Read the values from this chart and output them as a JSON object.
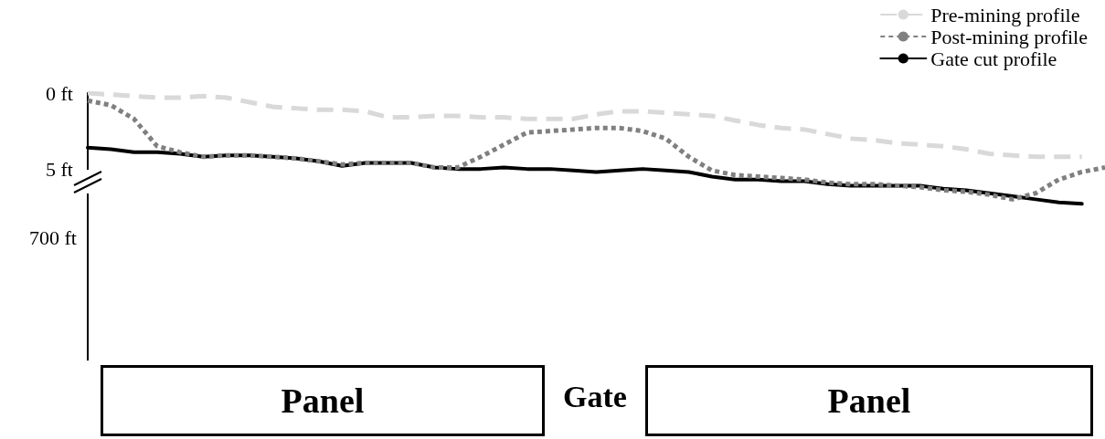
{
  "chart_data": {
    "type": "line",
    "categories": [
      null,
      null,
      null,
      null,
      null,
      null,
      null,
      null,
      null,
      null,
      null,
      null,
      null,
      null,
      null,
      null,
      null,
      null,
      null,
      null,
      null,
      null,
      null,
      null,
      null,
      null,
      null,
      null,
      null,
      null,
      null,
      null,
      null,
      null,
      null,
      null,
      null,
      null,
      null,
      null,
      null,
      null,
      null,
      null,
      null
    ],
    "series": [
      {
        "name": "Pre-mining profile",
        "color": "#d9d9d9",
        "line_style": "dashed",
        "values": [
          0.0,
          0.1,
          0.2,
          0.3,
          0.3,
          0.2,
          0.3,
          0.6,
          0.9,
          1.0,
          1.1,
          1.1,
          1.2,
          1.6,
          1.6,
          1.5,
          1.5,
          1.6,
          1.6,
          1.7,
          1.7,
          1.7,
          1.4,
          1.2,
          1.2,
          1.3,
          1.4,
          1.5,
          1.8,
          2.1,
          2.3,
          2.4,
          2.7,
          3.0,
          3.1,
          3.3,
          3.4,
          3.5,
          3.7,
          4.0,
          4.1,
          4.2,
          4.2,
          4.2,
          null
        ]
      },
      {
        "name": "Post-mining profile",
        "color": "#808080",
        "line_style": "dotted",
        "values": [
          0.5,
          0.8,
          1.7,
          3.5,
          3.9,
          4.2,
          4.1,
          4.1,
          4.2,
          4.3,
          4.5,
          4.7,
          4.6,
          4.6,
          4.6,
          4.9,
          4.9,
          4.2,
          3.4,
          2.6,
          2.5,
          2.4,
          2.3,
          2.3,
          2.5,
          3.0,
          4.2,
          5.1,
          5.4,
          5.5,
          5.6,
          5.7,
          5.9,
          6.0,
          6.0,
          6.1,
          6.2,
          6.4,
          6.5,
          6.7,
          7.0,
          6.6,
          5.7,
          5.2,
          4.9
        ]
      },
      {
        "name": "Gate cut profile",
        "color": "#000000",
        "line_style": "solid",
        "values": [
          3.6,
          3.7,
          3.9,
          3.9,
          4.0,
          4.2,
          4.1,
          4.1,
          4.2,
          4.3,
          4.5,
          4.8,
          4.6,
          4.6,
          4.6,
          4.9,
          5.0,
          5.0,
          4.9,
          5.0,
          5.0,
          5.1,
          5.2,
          5.1,
          5.0,
          5.1,
          5.2,
          5.5,
          5.7,
          5.7,
          5.8,
          5.8,
          6.0,
          6.1,
          6.1,
          6.1,
          6.1,
          6.3,
          6.4,
          6.6,
          6.8,
          7.0,
          7.2,
          7.3,
          null
        ]
      }
    ],
    "ylim": [
      8,
      0
    ],
    "yticks": [
      {
        "value": 0,
        "label": "0 ft"
      },
      {
        "value": 5,
        "label": "5 ft"
      }
    ],
    "tick_labels": "y",
    "grid": false,
    "legend": "top right",
    "marker": "none",
    "annotations": [
      "700 ft",
      "Panel",
      "Gate",
      "Panel"
    ]
  }
}
